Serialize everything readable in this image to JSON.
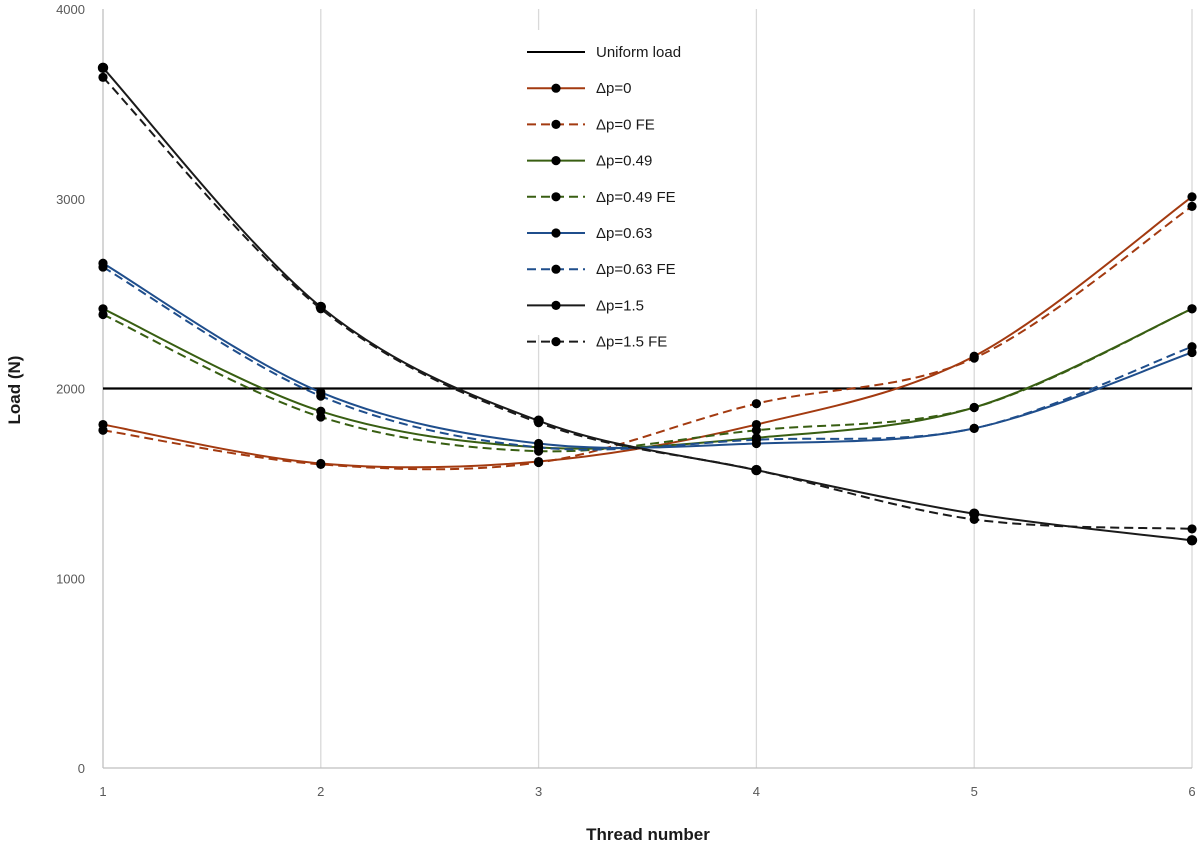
{
  "chart_data": {
    "type": "line",
    "title": "",
    "xlabel": "Thread number",
    "ylabel": "Load (N)",
    "x": [
      1,
      2,
      3,
      4,
      5,
      6
    ],
    "xticks": [
      "1",
      "2",
      "3",
      "4",
      "5",
      "6"
    ],
    "ylim": [
      0,
      4000
    ],
    "yticks": [
      "0",
      "1000",
      "2000",
      "3000",
      "4000"
    ],
    "grid": "vertical",
    "legend_position": "top-center",
    "series": [
      {
        "name": "Uniform load",
        "color": "#000000",
        "dashed": false,
        "markers": false,
        "values": [
          2000,
          2000,
          2000,
          2000,
          2000,
          2000
        ]
      },
      {
        "name": "Δp=0",
        "color": "#a33a10",
        "dashed": false,
        "markers": true,
        "values": [
          1810,
          1605,
          1615,
          1810,
          2170,
          3010
        ]
      },
      {
        "name": "Δp=0 FE",
        "color": "#a33a10",
        "dashed": true,
        "markers": true,
        "values": [
          1780,
          1600,
          1610,
          1920,
          2160,
          2960
        ]
      },
      {
        "name": "Δp=0.49",
        "color": "#385e12",
        "dashed": false,
        "markers": true,
        "values": [
          2420,
          1880,
          1690,
          1740,
          1900,
          2420
        ]
      },
      {
        "name": "Δp=0.49 FE",
        "color": "#385e12",
        "dashed": true,
        "markers": true,
        "values": [
          2390,
          1850,
          1670,
          1780,
          1900,
          2420
        ]
      },
      {
        "name": "Δp=0.63",
        "color": "#1f4e8c",
        "dashed": false,
        "markers": true,
        "values": [
          2660,
          1980,
          1710,
          1710,
          1790,
          2190
        ]
      },
      {
        "name": "Δp=0.63 FE",
        "color": "#1f4e8c",
        "dashed": true,
        "markers": true,
        "values": [
          2640,
          1960,
          1690,
          1730,
          1790,
          2220
        ]
      },
      {
        "name": "Δp=1.5",
        "color": "#1a1a1a",
        "dashed": false,
        "markers": true,
        "values": [
          3690,
          2430,
          1830,
          1570,
          1340,
          1200
        ]
      },
      {
        "name": "Δp=1.5 FE",
        "color": "#1a1a1a",
        "dashed": true,
        "markers": true,
        "values": [
          3640,
          2420,
          1820,
          1570,
          1310,
          1260
        ]
      }
    ]
  }
}
